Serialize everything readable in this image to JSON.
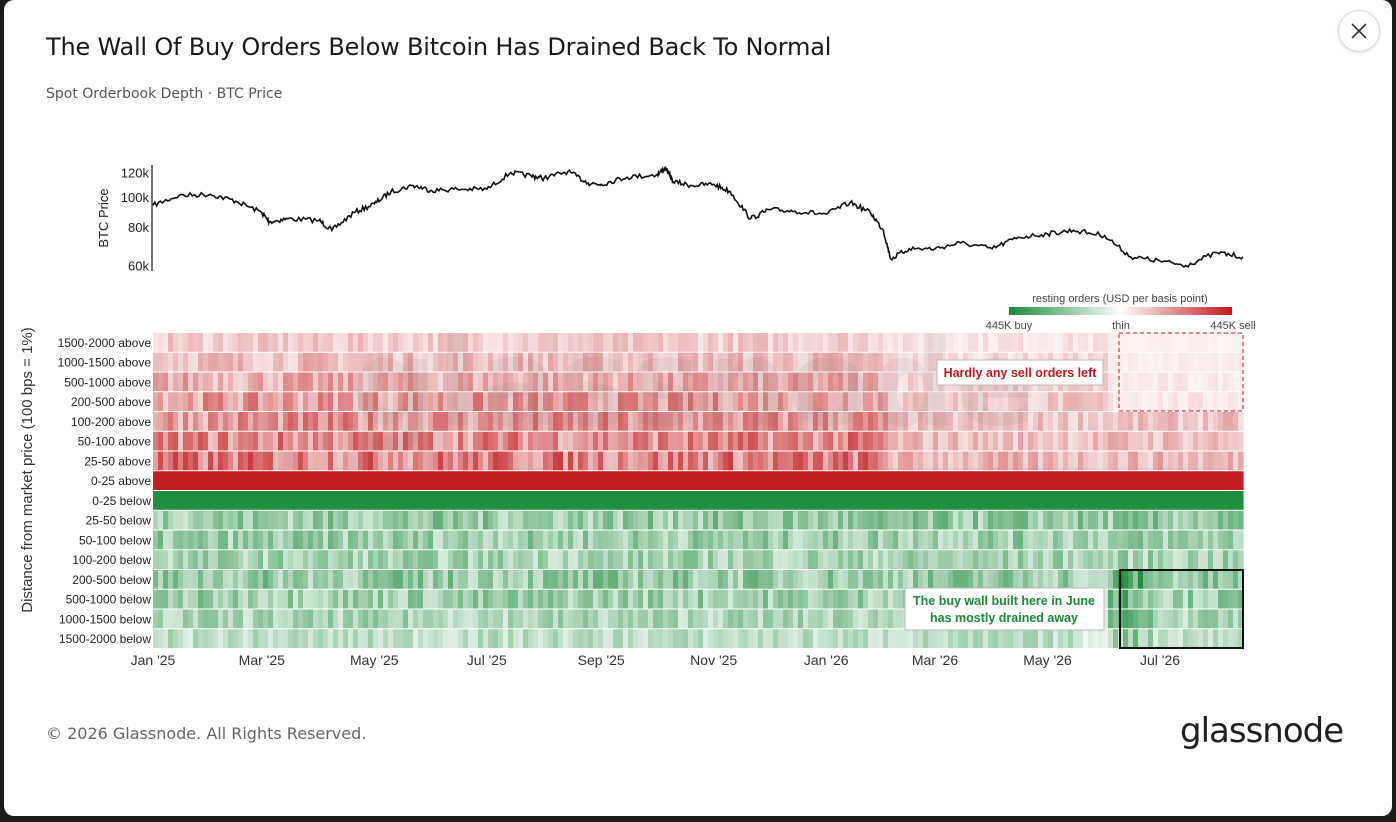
{
  "title": "The Wall Of Buy Orders Below Bitcoin Has Drained Back To Normal",
  "subtitle": "Spot Orderbook Depth · BTC Price",
  "footer": "© 2026 Glassnode. All Rights Reserved.",
  "brand": "glassnode",
  "watermark": "glassnode",
  "colors": {
    "sell": "#c0181c",
    "buy": "#1a8a3a",
    "thin": "#ffffff",
    "line": "#111111"
  },
  "chart_data": [
    {
      "type": "line",
      "ylabel": "BTC Price",
      "yscale": "log",
      "yticks": [
        {
          "v": 60000,
          "label": "60k"
        },
        {
          "v": 80000,
          "label": "80k"
        },
        {
          "v": 100000,
          "label": "100k"
        },
        {
          "v": 120000,
          "label": "120k"
        }
      ],
      "ylim": [
        58000,
        126000
      ],
      "x": [
        "2025-01-01",
        "2025-01-15",
        "2025-02-01",
        "2025-02-15",
        "2025-03-01",
        "2025-03-05",
        "2025-03-15",
        "2025-04-01",
        "2025-04-08",
        "2025-04-20",
        "2025-05-01",
        "2025-05-10",
        "2025-05-22",
        "2025-06-01",
        "2025-06-15",
        "2025-07-01",
        "2025-07-14",
        "2025-07-25",
        "2025-08-01",
        "2025-08-14",
        "2025-08-25",
        "2025-09-01",
        "2025-09-15",
        "2025-10-01",
        "2025-10-06",
        "2025-10-10",
        "2025-10-20",
        "2025-11-01",
        "2025-11-10",
        "2025-11-21",
        "2025-12-01",
        "2025-12-15",
        "2026-01-01",
        "2026-01-14",
        "2026-01-25",
        "2026-02-01",
        "2026-02-05",
        "2026-02-15",
        "2026-03-01",
        "2026-03-15",
        "2026-04-01",
        "2026-04-15",
        "2026-05-01",
        "2026-05-15",
        "2026-06-01",
        "2026-06-15",
        "2026-07-01",
        "2026-07-15",
        "2026-08-01",
        "2026-08-15"
      ],
      "series": [
        {
          "values": [
            94000,
            101000,
            102000,
            97000,
            89000,
            83000,
            85000,
            84000,
            78000,
            89000,
            95000,
            104000,
            109000,
            105000,
            106000,
            106000,
            120000,
            117000,
            115000,
            121000,
            111000,
            110000,
            116000,
            118000,
            124000,
            112000,
            109000,
            110000,
            104000,
            85000,
            91000,
            90000,
            88000,
            96000,
            89000,
            78000,
            63000,
            68000,
            68000,
            71000,
            68000,
            74000,
            76000,
            78000,
            75000,
            64000,
            62000,
            60000,
            66000,
            64000
          ]
        }
      ]
    },
    {
      "type": "heatmap",
      "ylabel": "Distance from market price (100 bps = 1%)",
      "rows": [
        "1500-2000 above",
        "1000-1500 above",
        "500-1000 above",
        "200-500 above",
        "100-200 above",
        "50-100 above",
        "25-50 above",
        "0-25 above",
        "0-25 below",
        "25-50 below",
        "50-100 below",
        "100-200 below",
        "200-500 below",
        "500-1000 below",
        "1000-1500 below",
        "1500-2000 below"
      ],
      "x_ticks": [
        "Jan '25",
        "Mar '25",
        "May '25",
        "Jul '25",
        "Sep '25",
        "Nov '25",
        "Jan '26",
        "Mar '26",
        "May '26",
        "Jul '26"
      ],
      "colorbar": {
        "title": "resting orders (USD per basis point)",
        "min_label": "445K buy",
        "mid_label": "thin",
        "max_label": "445K sell",
        "max_abs": 445000
      },
      "annotations": [
        {
          "text": "Hardly any sell orders left"
        },
        {
          "text_lines": [
            "The buy wall built here in June",
            "has mostly drained away"
          ]
        }
      ]
    }
  ]
}
